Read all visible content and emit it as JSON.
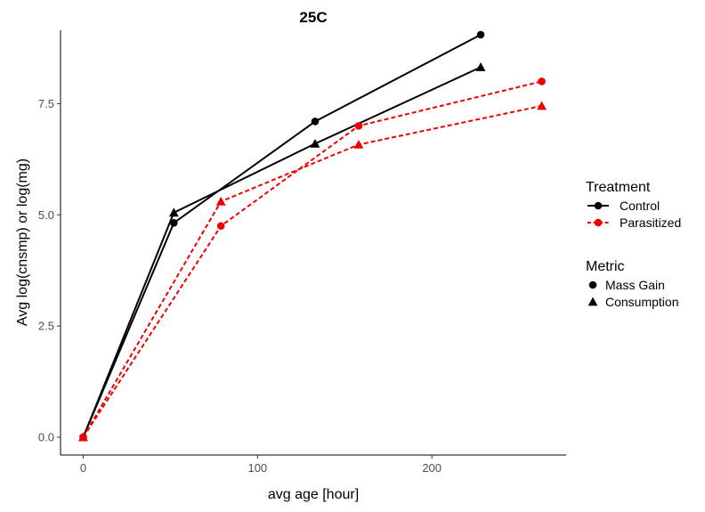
{
  "chart_data": {
    "type": "line",
    "title": "25C",
    "xlabel": "avg age [hour]",
    "ylabel": "Avg log(cnsmp) or log(mg)",
    "xlim": [
      -13,
      277
    ],
    "ylim": [
      -0.4,
      9.15
    ],
    "xticks": [
      0,
      100,
      200
    ],
    "xtick_labels": [
      "0",
      "100",
      "200"
    ],
    "yticks": [
      0,
      2.5,
      5,
      7.5
    ],
    "ytick_labels": [
      "0.0",
      "2.5",
      "5.0",
      "7.5"
    ],
    "grid": false,
    "legend_position": "right",
    "legends": [
      {
        "title": "Treatment",
        "items": [
          {
            "label": "Control",
            "color": "#000000",
            "linetype": "solid"
          },
          {
            "label": "Parasitized",
            "color": "#ee0000",
            "linetype": "dashed"
          }
        ]
      },
      {
        "title": "Metric",
        "items": [
          {
            "label": "Mass Gain",
            "shape": "circle"
          },
          {
            "label": "Consumption",
            "shape": "triangle"
          }
        ]
      }
    ],
    "series": [
      {
        "treatment": "Control",
        "metric": "Mass Gain",
        "color": "#000000",
        "dashed": false,
        "shape": "circle",
        "x": [
          0,
          52,
          133,
          228
        ],
        "y": [
          0.0,
          4.82,
          7.1,
          9.05
        ]
      },
      {
        "treatment": "Control",
        "metric": "Consumption",
        "color": "#000000",
        "dashed": false,
        "shape": "triangle",
        "x": [
          0,
          52,
          133,
          228
        ],
        "y": [
          0.0,
          5.05,
          6.6,
          8.32
        ]
      },
      {
        "treatment": "Parasitized",
        "metric": "Mass Gain",
        "color": "#ee0000",
        "dashed": true,
        "shape": "circle",
        "x": [
          0,
          79,
          158,
          263
        ],
        "y": [
          0.0,
          4.75,
          7.0,
          8.0
        ]
      },
      {
        "treatment": "Parasitized",
        "metric": "Consumption",
        "color": "#ee0000",
        "dashed": true,
        "shape": "triangle",
        "x": [
          0,
          79,
          158,
          263
        ],
        "y": [
          0.0,
          5.3,
          6.58,
          7.45
        ]
      }
    ]
  }
}
